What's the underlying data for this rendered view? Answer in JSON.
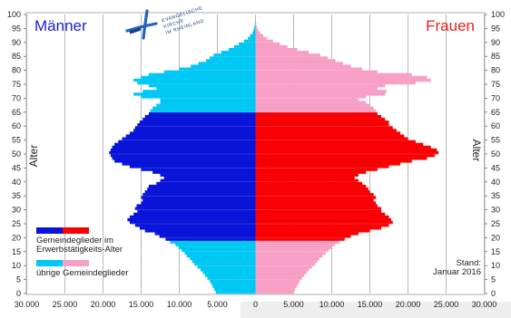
{
  "chart_data": {
    "type": "population-pyramid",
    "title_left": "Männer",
    "title_right": "Frauen",
    "ylabel": "Alter",
    "ylim": [
      0,
      100
    ],
    "y_ticks": [
      0,
      5,
      10,
      15,
      20,
      25,
      30,
      35,
      40,
      45,
      50,
      55,
      60,
      65,
      70,
      75,
      80,
      85,
      90,
      95,
      100
    ],
    "xlim": [
      0,
      30000
    ],
    "x_ticks": [
      30000,
      25000,
      20000,
      15000,
      10000,
      5000,
      0,
      5000,
      10000,
      15000,
      20000,
      25000,
      30000
    ],
    "x_tick_labels": [
      "30.000",
      "25.000",
      "20.000",
      "15.000",
      "10.000",
      "5.000",
      "0",
      "5.000",
      "10.000",
      "15.000",
      "20.000",
      "25.000",
      "30.000"
    ],
    "working_age_range": [
      19,
      64
    ],
    "colors": {
      "male_working": "#0a14d8",
      "male_other": "#00c8f4",
      "female_working": "#f80004",
      "female_other": "#f7a0c6"
    },
    "legend": [
      {
        "label": "Gemeindeglieder im",
        "label2": "Erwerbstätigkeits-Alter",
        "colors": [
          "#0a14d8",
          "#f80004"
        ]
      },
      {
        "label": "übrige Gemeindeglieder",
        "colors": [
          "#00c8f4",
          "#f7a0c6"
        ]
      }
    ],
    "stand_label": "Stand:",
    "stand_value": "Januar 2016",
    "logo_lines": [
      "EVANGELISCHE",
      "KIRCHE",
      "IM RHEINLAND"
    ],
    "male": [
      5200,
      5400,
      5600,
      5800,
      6000,
      6300,
      6600,
      6900,
      7200,
      7600,
      8000,
      8300,
      8600,
      9000,
      9300,
      9700,
      10100,
      10500,
      11200,
      11800,
      12600,
      13200,
      14500,
      15200,
      15800,
      16500,
      16800,
      16500,
      16000,
      15500,
      15800,
      15600,
      15000,
      14800,
      15000,
      14800,
      14500,
      14200,
      14000,
      13000,
      12500,
      12000,
      12500,
      13500,
      15000,
      16500,
      17500,
      18500,
      18800,
      19000,
      19200,
      19000,
      18800,
      18500,
      18000,
      17500,
      17000,
      16500,
      16000,
      15800,
      15500,
      15200,
      14800,
      14500,
      14000,
      13800,
      13500,
      13000,
      12500,
      12500,
      15000,
      16000,
      14800,
      13000,
      14000,
      15500,
      16000,
      15000,
      14000,
      12000,
      10000,
      8500,
      7500,
      6500,
      6000,
      5500,
      4500,
      3500,
      2800,
      2200,
      1500,
      1000,
      700,
      400,
      250,
      150,
      80,
      40,
      20,
      10,
      0
    ],
    "female": [
      5000,
      5200,
      5400,
      5600,
      5800,
      6100,
      6400,
      6700,
      7000,
      7400,
      7800,
      8100,
      8400,
      8800,
      9200,
      9600,
      10000,
      10400,
      11000,
      11700,
      12500,
      13500,
      15000,
      16500,
      17500,
      18000,
      17800,
      17500,
      17000,
      16500,
      16500,
      16000,
      15800,
      15500,
      15800,
      15500,
      15000,
      14800,
      14500,
      14000,
      13500,
      13000,
      13500,
      14500,
      16000,
      17500,
      19000,
      20500,
      22500,
      23500,
      24000,
      23800,
      23000,
      22000,
      21000,
      20000,
      19500,
      19000,
      18500,
      18000,
      17500,
      17500,
      17000,
      16500,
      16000,
      15800,
      15500,
      15000,
      14500,
      13500,
      14500,
      17000,
      17200,
      16000,
      17000,
      21000,
      23000,
      22500,
      20500,
      16000,
      14000,
      12500,
      11500,
      10500,
      9500,
      8500,
      7000,
      5500,
      4200,
      3200,
      2300,
      1500,
      1000,
      600,
      350,
      200,
      100,
      50,
      25,
      10,
      0
    ]
  }
}
